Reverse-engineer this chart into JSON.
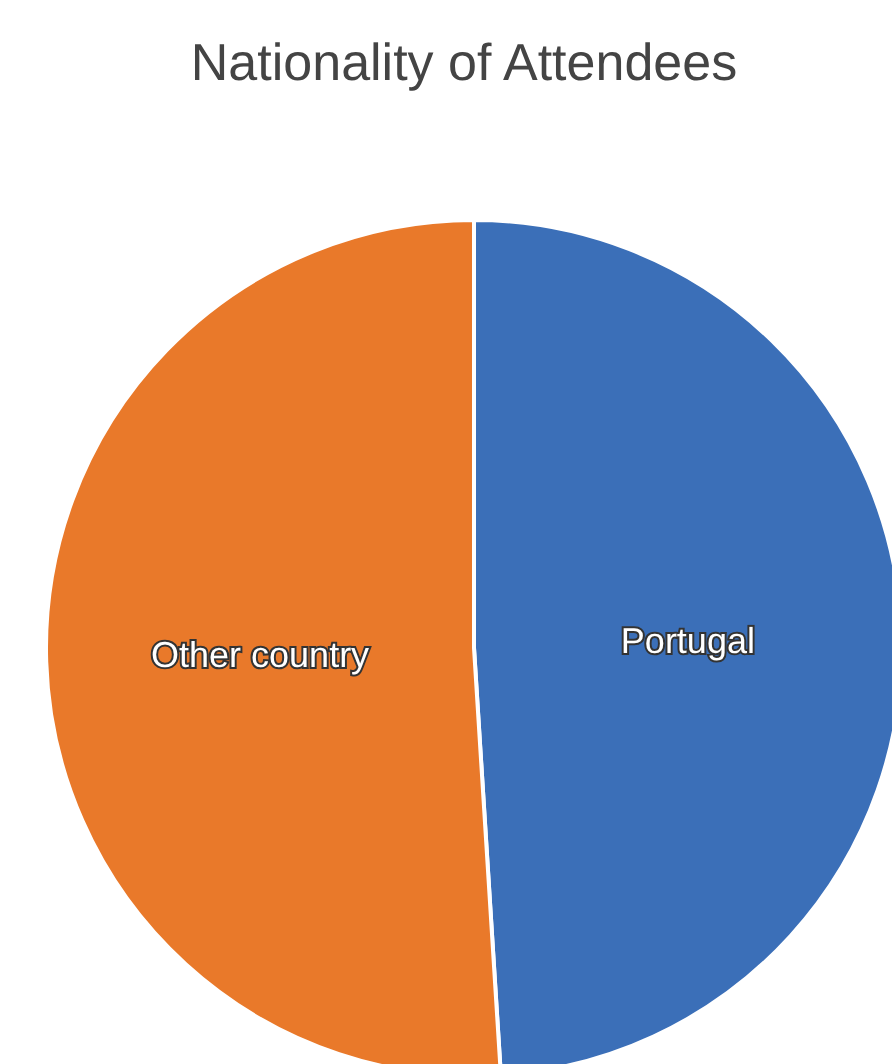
{
  "chart_data": {
    "type": "pie",
    "title": "Nationality of Attendees",
    "categories": [
      "Portugal",
      "Other country"
    ],
    "values": [
      49,
      51
    ],
    "colors": [
      "#3b6fb8",
      "#e9792a"
    ],
    "legend": false
  }
}
